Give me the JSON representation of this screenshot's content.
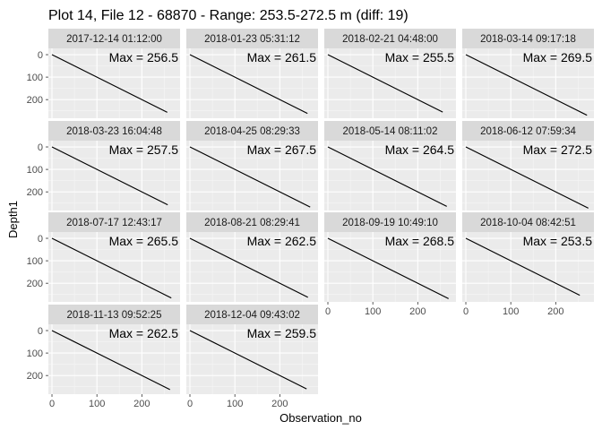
{
  "title": "Plot 14, File 12 - 68870 - Range: 253.5-272.5 m (diff: 19)",
  "chart_data": {
    "type": "line",
    "layout": "facet_wrap",
    "facet_columns": 4,
    "xlabel": "Observation_no",
    "ylabel": "Depth1",
    "xlim": [
      -8,
      285
    ],
    "ylim": [
      283,
      -28
    ],
    "y_reversed": true,
    "x_ticks": [
      0,
      100,
      200
    ],
    "y_ticks": [
      0,
      100,
      200
    ],
    "grid": true,
    "line_color": "#000000",
    "panel_background": "#ebebeb",
    "strip_background": "#d9d9d9",
    "max_prefix": "Max = ",
    "panels": [
      {
        "label": "2017-12-14 01:12:00",
        "max": "256.5",
        "x_end": 256.5,
        "y_end": 256.5
      },
      {
        "label": "2018-01-23 05:31:12",
        "max": "261.5",
        "x_end": 261.5,
        "y_end": 261.5
      },
      {
        "label": "2018-02-21 04:48:00",
        "max": "255.5",
        "x_end": 255.5,
        "y_end": 255.5
      },
      {
        "label": "2018-03-14 09:17:18",
        "max": "269.5",
        "x_end": 269.5,
        "y_end": 269.5
      },
      {
        "label": "2018-03-23 16:04:48",
        "max": "257.5",
        "x_end": 257.5,
        "y_end": 257.5
      },
      {
        "label": "2018-04-25 08:29:33",
        "max": "267.5",
        "x_end": 267.5,
        "y_end": 267.5
      },
      {
        "label": "2018-05-14 08:11:02",
        "max": "264.5",
        "x_end": 264.5,
        "y_end": 264.5
      },
      {
        "label": "2018-06-12 07:59:34",
        "max": "272.5",
        "x_end": 272.5,
        "y_end": 272.5
      },
      {
        "label": "2018-07-17 12:43:17",
        "max": "265.5",
        "x_end": 265.5,
        "y_end": 265.5
      },
      {
        "label": "2018-08-21 08:29:41",
        "max": "262.5",
        "x_end": 262.5,
        "y_end": 262.5
      },
      {
        "label": "2018-09-19 10:49:10",
        "max": "268.5",
        "x_end": 268.5,
        "y_end": 268.5
      },
      {
        "label": "2018-10-04 08:42:51",
        "max": "253.5",
        "x_end": 253.5,
        "y_end": 253.5
      },
      {
        "label": "2018-11-13 09:52:25",
        "max": "262.5",
        "x_end": 262.5,
        "y_end": 262.5
      },
      {
        "label": "2018-12-04 09:43:02",
        "max": "259.5",
        "x_end": 259.5,
        "y_end": 259.5
      }
    ]
  }
}
